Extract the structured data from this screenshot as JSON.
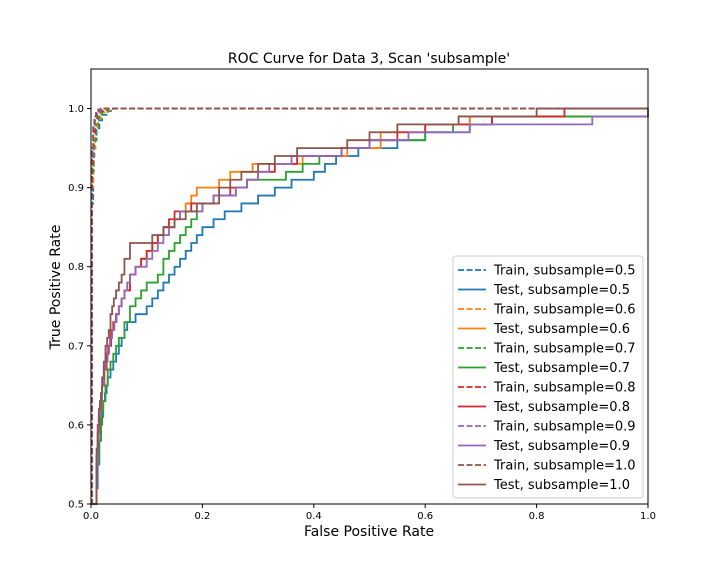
{
  "chart_data": {
    "type": "line",
    "title": "ROC Curve for Data 3, Scan 'subsample'",
    "xlabel": "False Positive Rate",
    "ylabel": "True Positive Rate",
    "xlim": [
      0.0,
      1.0
    ],
    "ylim": [
      0.5,
      1.05
    ],
    "xticks": [
      0.0,
      0.2,
      0.4,
      0.6,
      0.8,
      1.0
    ],
    "xtick_labels": [
      "0.0",
      "0.2",
      "0.4",
      "0.6",
      "0.8",
      "1.0"
    ],
    "yticks": [
      0.5,
      0.6,
      0.7,
      0.8,
      0.9,
      1.0
    ],
    "ytick_labels": [
      "0.5",
      "0.6",
      "0.7",
      "0.8",
      "0.9",
      "1.0"
    ],
    "grid": false,
    "legend_position": "lower right",
    "series": [
      {
        "name": "Train, subsample=0.5",
        "color": "#1f77b4",
        "dash": true,
        "x": [
          0,
          0.002,
          0.004,
          0.006,
          0.01,
          0.015,
          0.02,
          0.03,
          0.04,
          1.0
        ],
        "y": [
          0.5,
          0.88,
          0.94,
          0.96,
          0.975,
          0.985,
          0.992,
          0.997,
          1.0,
          1.0
        ]
      },
      {
        "name": "Test, subsample=0.5",
        "color": "#1f77b4",
        "dash": false,
        "x": [
          0,
          0.008,
          0.01,
          0.012,
          0.015,
          0.018,
          0.02,
          0.022,
          0.025,
          0.028,
          0.03,
          0.035,
          0.04,
          0.045,
          0.05,
          0.055,
          0.06,
          0.065,
          0.07,
          0.08,
          0.09,
          0.1,
          0.11,
          0.12,
          0.13,
          0.14,
          0.15,
          0.16,
          0.17,
          0.18,
          0.19,
          0.2,
          0.22,
          0.24,
          0.27,
          0.3,
          0.33,
          0.36,
          0.4,
          0.42,
          0.44,
          0.48,
          0.55,
          0.6,
          0.68,
          1.0
        ],
        "y": [
          0.5,
          0.5,
          0.52,
          0.55,
          0.58,
          0.6,
          0.62,
          0.63,
          0.64,
          0.65,
          0.66,
          0.67,
          0.68,
          0.69,
          0.7,
          0.71,
          0.72,
          0.73,
          0.73,
          0.74,
          0.74,
          0.75,
          0.76,
          0.77,
          0.78,
          0.79,
          0.8,
          0.81,
          0.82,
          0.83,
          0.84,
          0.85,
          0.86,
          0.87,
          0.88,
          0.89,
          0.9,
          0.91,
          0.92,
          0.93,
          0.94,
          0.95,
          0.96,
          0.97,
          0.99,
          1.0
        ]
      },
      {
        "name": "Train, subsample=0.6",
        "color": "#ff7f0e",
        "dash": true,
        "x": [
          0,
          0.002,
          0.004,
          0.008,
          0.012,
          0.018,
          0.025,
          0.035,
          1.0
        ],
        "y": [
          0.5,
          0.9,
          0.95,
          0.975,
          0.988,
          0.995,
          0.998,
          1.0,
          1.0
        ]
      },
      {
        "name": "Test, subsample=0.6",
        "color": "#ff7f0e",
        "dash": false,
        "x": [
          0,
          0.008,
          0.01,
          0.013,
          0.016,
          0.02,
          0.023,
          0.026,
          0.03,
          0.035,
          0.04,
          0.045,
          0.05,
          0.055,
          0.06,
          0.07,
          0.08,
          0.09,
          0.1,
          0.11,
          0.12,
          0.13,
          0.15,
          0.16,
          0.17,
          0.18,
          0.19,
          0.21,
          0.23,
          0.25,
          0.27,
          0.29,
          0.3,
          0.32,
          0.35,
          0.38,
          0.41,
          0.46,
          0.52,
          0.6,
          0.68,
          1.0
        ],
        "y": [
          0.5,
          0.5,
          0.55,
          0.59,
          0.62,
          0.65,
          0.67,
          0.69,
          0.7,
          0.72,
          0.73,
          0.74,
          0.75,
          0.76,
          0.77,
          0.79,
          0.8,
          0.81,
          0.82,
          0.83,
          0.84,
          0.85,
          0.86,
          0.87,
          0.88,
          0.89,
          0.9,
          0.9,
          0.91,
          0.92,
          0.92,
          0.93,
          0.93,
          0.93,
          0.93,
          0.94,
          0.94,
          0.95,
          0.97,
          0.98,
          0.99,
          1.0
        ]
      },
      {
        "name": "Train, subsample=0.7",
        "color": "#2ca02c",
        "dash": true,
        "x": [
          0,
          0.002,
          0.005,
          0.009,
          0.014,
          0.02,
          0.03,
          1.0
        ],
        "y": [
          0.5,
          0.92,
          0.96,
          0.98,
          0.99,
          0.996,
          1.0,
          1.0
        ]
      },
      {
        "name": "Test, subsample=0.7",
        "color": "#2ca02c",
        "dash": false,
        "x": [
          0,
          0.008,
          0.01,
          0.014,
          0.018,
          0.022,
          0.026,
          0.03,
          0.035,
          0.04,
          0.045,
          0.05,
          0.06,
          0.07,
          0.08,
          0.09,
          0.1,
          0.12,
          0.13,
          0.14,
          0.15,
          0.16,
          0.17,
          0.18,
          0.19,
          0.2,
          0.22,
          0.24,
          0.26,
          0.28,
          0.3,
          0.35,
          0.38,
          0.41,
          0.45,
          0.5,
          0.55,
          0.6,
          0.65,
          0.72,
          0.95,
          1.0
        ],
        "y": [
          0.5,
          0.5,
          0.55,
          0.58,
          0.61,
          0.63,
          0.65,
          0.67,
          0.68,
          0.69,
          0.7,
          0.71,
          0.73,
          0.75,
          0.76,
          0.77,
          0.78,
          0.79,
          0.81,
          0.82,
          0.83,
          0.84,
          0.85,
          0.86,
          0.87,
          0.88,
          0.89,
          0.89,
          0.9,
          0.91,
          0.91,
          0.92,
          0.93,
          0.94,
          0.95,
          0.96,
          0.96,
          0.97,
          0.98,
          0.99,
          0.99,
          1.0
        ]
      },
      {
        "name": "Train, subsample=0.8",
        "color": "#d62728",
        "dash": true,
        "x": [
          0,
          0.002,
          0.004,
          0.007,
          0.011,
          0.016,
          0.022,
          1.0
        ],
        "y": [
          0.5,
          0.93,
          0.97,
          0.985,
          0.993,
          0.997,
          1.0,
          1.0
        ]
      },
      {
        "name": "Test, subsample=0.8",
        "color": "#d62728",
        "dash": false,
        "x": [
          0,
          0.008,
          0.01,
          0.012,
          0.015,
          0.018,
          0.02,
          0.024,
          0.028,
          0.032,
          0.036,
          0.04,
          0.045,
          0.05,
          0.055,
          0.06,
          0.07,
          0.08,
          0.09,
          0.1,
          0.11,
          0.12,
          0.13,
          0.14,
          0.15,
          0.16,
          0.18,
          0.2,
          0.22,
          0.25,
          0.28,
          0.3,
          0.33,
          0.37,
          0.4,
          0.45,
          0.5,
          0.55,
          0.6,
          0.65,
          0.72,
          0.78,
          0.85,
          1.0
        ],
        "y": [
          0.5,
          0.5,
          0.56,
          0.59,
          0.62,
          0.64,
          0.65,
          0.67,
          0.69,
          0.7,
          0.72,
          0.73,
          0.74,
          0.75,
          0.76,
          0.77,
          0.79,
          0.8,
          0.81,
          0.82,
          0.83,
          0.84,
          0.85,
          0.86,
          0.87,
          0.87,
          0.88,
          0.88,
          0.89,
          0.9,
          0.91,
          0.92,
          0.93,
          0.94,
          0.94,
          0.95,
          0.96,
          0.97,
          0.98,
          0.98,
          0.99,
          0.99,
          1.0,
          1.0
        ]
      },
      {
        "name": "Train, subsample=0.9",
        "color": "#9467bd",
        "dash": true,
        "x": [
          0,
          0.002,
          0.004,
          0.007,
          0.01,
          0.015,
          0.02,
          1.0
        ],
        "y": [
          0.5,
          0.94,
          0.975,
          0.988,
          0.995,
          0.998,
          1.0,
          1.0
        ]
      },
      {
        "name": "Test, subsample=0.9",
        "color": "#9467bd",
        "dash": false,
        "x": [
          0,
          0.008,
          0.01,
          0.012,
          0.014,
          0.017,
          0.02,
          0.023,
          0.026,
          0.03,
          0.034,
          0.038,
          0.042,
          0.046,
          0.05,
          0.055,
          0.06,
          0.065,
          0.07,
          0.08,
          0.09,
          0.1,
          0.11,
          0.12,
          0.13,
          0.14,
          0.15,
          0.16,
          0.18,
          0.2,
          0.22,
          0.24,
          0.26,
          0.28,
          0.3,
          0.32,
          0.36,
          0.4,
          0.45,
          0.5,
          0.57,
          0.63,
          0.68,
          0.88,
          0.9,
          1.0
        ],
        "y": [
          0.5,
          0.5,
          0.55,
          0.58,
          0.61,
          0.63,
          0.65,
          0.67,
          0.68,
          0.7,
          0.71,
          0.72,
          0.73,
          0.74,
          0.75,
          0.76,
          0.77,
          0.78,
          0.79,
          0.8,
          0.8,
          0.81,
          0.82,
          0.83,
          0.84,
          0.85,
          0.86,
          0.87,
          0.87,
          0.88,
          0.89,
          0.89,
          0.9,
          0.91,
          0.92,
          0.93,
          0.94,
          0.94,
          0.95,
          0.96,
          0.97,
          0.97,
          0.98,
          0.98,
          0.99,
          1.0
        ]
      },
      {
        "name": "Train, subsample=1.0",
        "color": "#8c564b",
        "dash": true,
        "x": [
          0,
          0.002,
          0.004,
          0.006,
          0.009,
          0.013,
          0.018,
          1.0
        ],
        "y": [
          0.5,
          0.95,
          0.98,
          0.99,
          0.996,
          0.999,
          1.0,
          1.0
        ]
      },
      {
        "name": "Test, subsample=1.0",
        "color": "#8c564b",
        "dash": false,
        "x": [
          0,
          0.008,
          0.01,
          0.012,
          0.014,
          0.016,
          0.018,
          0.02,
          0.023,
          0.026,
          0.029,
          0.032,
          0.035,
          0.038,
          0.041,
          0.045,
          0.05,
          0.055,
          0.06,
          0.07,
          0.09,
          0.11,
          0.13,
          0.15,
          0.17,
          0.19,
          0.21,
          0.23,
          0.25,
          0.27,
          0.3,
          0.33,
          0.37,
          0.42,
          0.46,
          0.5,
          0.55,
          0.6,
          0.66,
          0.78,
          0.8,
          1.0
        ],
        "y": [
          0.5,
          0.5,
          0.57,
          0.6,
          0.62,
          0.63,
          0.64,
          0.66,
          0.68,
          0.7,
          0.71,
          0.72,
          0.74,
          0.75,
          0.76,
          0.77,
          0.78,
          0.79,
          0.81,
          0.83,
          0.83,
          0.84,
          0.85,
          0.86,
          0.87,
          0.88,
          0.88,
          0.9,
          0.91,
          0.92,
          0.93,
          0.94,
          0.95,
          0.95,
          0.96,
          0.97,
          0.98,
          0.98,
          0.99,
          0.99,
          1.0,
          1.0
        ]
      }
    ]
  }
}
